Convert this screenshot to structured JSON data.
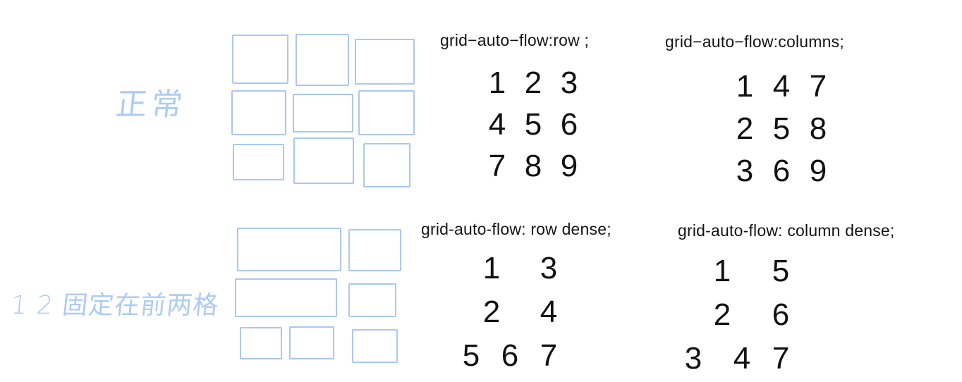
{
  "handwritten_labels": {
    "normal": "正常",
    "fixed_first_two": "1 2 固定在前两格"
  },
  "panels": [
    {
      "caption": "grid−auto−flow:row ;",
      "numbers": [
        "1",
        "2",
        "3",
        "4",
        "5",
        "6",
        "7",
        "8",
        "9"
      ]
    },
    {
      "caption": "grid−auto−flow:columns;",
      "numbers": [
        "1",
        "4",
        "7",
        "2",
        "5",
        "8",
        "3",
        "6",
        "9"
      ]
    },
    {
      "caption": "grid-auto-flow: row dense;",
      "numbers": [
        "1",
        "3",
        "2",
        "4",
        "5",
        "6",
        "7"
      ]
    },
    {
      "caption": "grid-auto-flow: column dense;",
      "numbers": [
        "1",
        "5",
        "2",
        "6",
        "3",
        "4",
        "7"
      ]
    }
  ],
  "colors": {
    "sketch_blue": "#a9c7f5",
    "text": "#111111"
  }
}
